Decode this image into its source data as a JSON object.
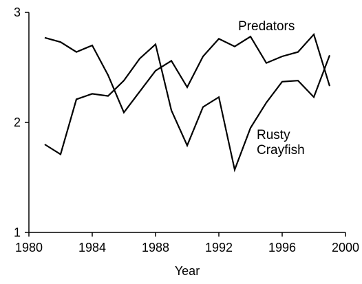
{
  "chart_data": {
    "type": "line",
    "x": [
      1981,
      1982,
      1983,
      1984,
      1985,
      1986,
      1987,
      1988,
      1989,
      1990,
      1991,
      1992,
      1993,
      1994,
      1995,
      1996,
      1997,
      1998,
      1999
    ],
    "series": [
      {
        "name": "Predators",
        "color": "#000000",
        "values": [
          2.77,
          2.73,
          2.64,
          2.7,
          2.43,
          2.09,
          2.28,
          2.47,
          2.56,
          2.32,
          2.6,
          2.76,
          2.69,
          2.78,
          2.54,
          2.6,
          2.64,
          2.8,
          2.33
        ]
      },
      {
        "name": "Rusty Crayfish",
        "color": "#000000",
        "values": [
          1.8,
          1.71,
          2.21,
          2.26,
          2.24,
          2.38,
          2.58,
          2.71,
          2.11,
          1.79,
          2.14,
          2.23,
          1.57,
          1.95,
          2.18,
          2.37,
          2.38,
          2.23,
          2.61
        ]
      }
    ],
    "x_label": "Year",
    "xlim": [
      1980,
      2000
    ],
    "xticks": [
      1980,
      1984,
      1988,
      1992,
      1996,
      2000
    ],
    "ylim": [
      1,
      3
    ],
    "yticks": [
      1,
      2,
      3
    ],
    "grid": false
  }
}
